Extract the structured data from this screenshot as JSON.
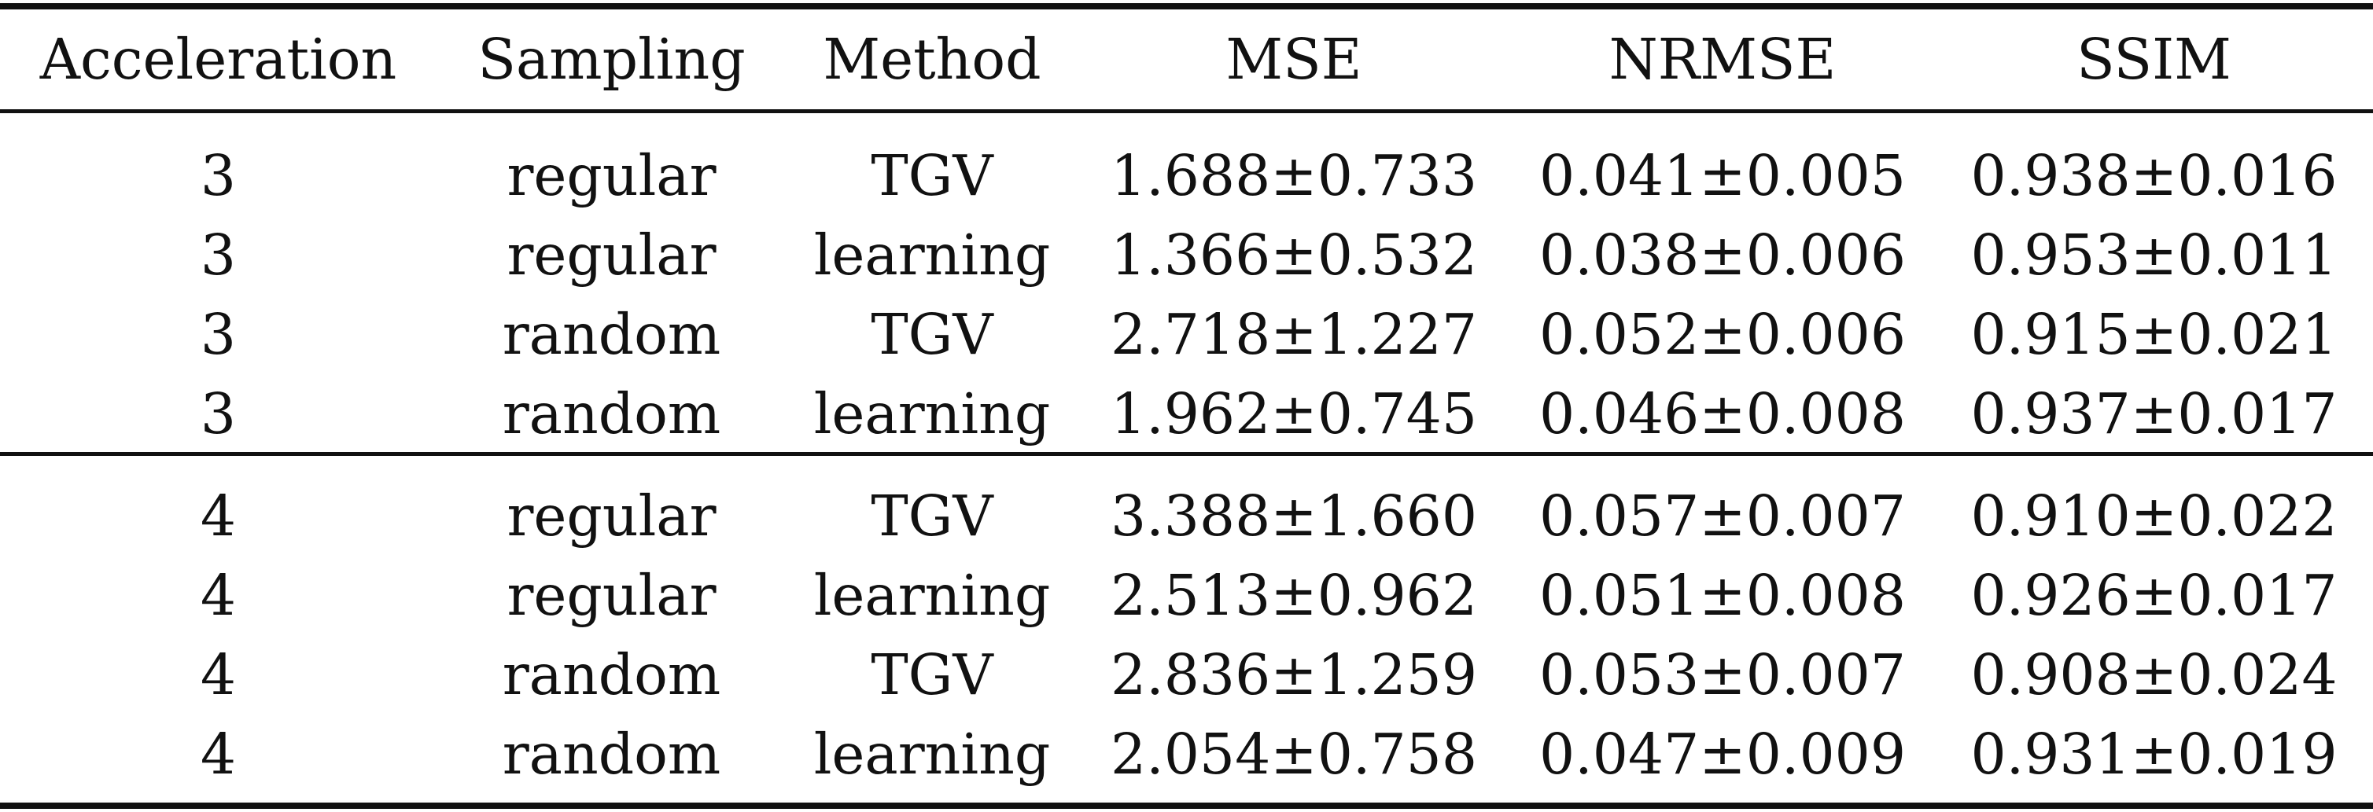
{
  "table": {
    "headers": [
      "Acceleration",
      "Sampling",
      "Method",
      "MSE",
      "NRMSE",
      "SSIM"
    ],
    "groups": [
      {
        "rows": [
          [
            "3",
            "regular",
            "TGV",
            "1.688±0.733",
            "0.041±0.005",
            "0.938±0.016"
          ],
          [
            "3",
            "regular",
            "learning",
            "1.366±0.532",
            "0.038±0.006",
            "0.953±0.011"
          ],
          [
            "3",
            "random",
            "TGV",
            "2.718±1.227",
            "0.052±0.006",
            "0.915±0.021"
          ],
          [
            "3",
            "random",
            "learning",
            "1.962±0.745",
            "0.046±0.008",
            "0.937±0.017"
          ]
        ]
      },
      {
        "rows": [
          [
            "4",
            "regular",
            "TGV",
            "3.388±1.660",
            "0.057±0.007",
            "0.910±0.022"
          ],
          [
            "4",
            "regular",
            "learning",
            "2.513±0.962",
            "0.051±0.008",
            "0.926±0.017"
          ],
          [
            "4",
            "random",
            "TGV",
            "2.836±1.259",
            "0.053±0.007",
            "0.908±0.024"
          ],
          [
            "4",
            "random",
            "learning",
            "2.054±0.758",
            "0.047±0.009",
            "0.931±0.019"
          ]
        ]
      }
    ]
  }
}
